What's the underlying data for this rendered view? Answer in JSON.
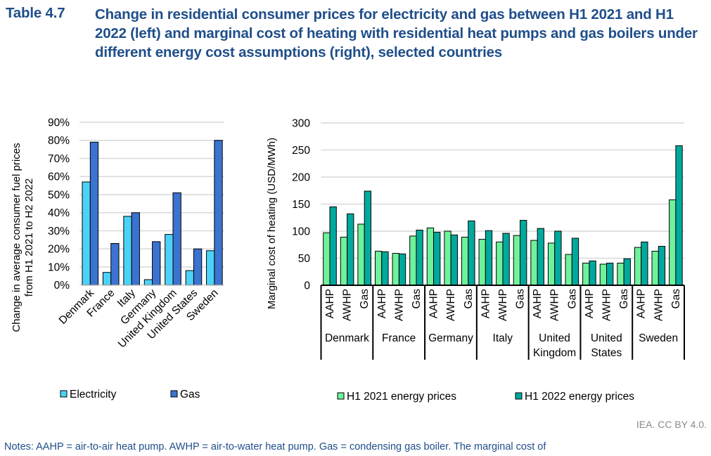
{
  "header": {
    "label": "Table 4.7",
    "title": "Change in residential consumer prices for electricity and gas between H1 2021 and H1 2022 (left) and marginal cost of heating with residential heat pumps and gas boilers under different energy cost assumptions (right), selected countries"
  },
  "credit": "IEA. CC BY 4.0.",
  "notes": "Notes: AAHP = air-to-air heat pump. AWHP = air-to-water heat pump. Gas = condensing gas boiler. The marginal cost of",
  "colors": {
    "electricity": "#4dd2f7",
    "gas": "#3b73d1",
    "h1_2021": "#6ef29b",
    "h1_2022": "#00a99d",
    "grid": "#d9d9d9",
    "text": "#000000"
  },
  "chart_data": [
    {
      "type": "bar",
      "title": "",
      "xlabel": "",
      "ylabel": "Change in average consumer fuel prices from H1 2021 to H2 2022",
      "ylim": [
        0,
        0.9
      ],
      "yticks": [
        0,
        0.1,
        0.2,
        0.3,
        0.4,
        0.5,
        0.6,
        0.7,
        0.8,
        0.9
      ],
      "ytick_labels": [
        "0%",
        "10%",
        "20%",
        "30%",
        "40%",
        "50%",
        "60%",
        "70%",
        "80%",
        "90%"
      ],
      "grid": true,
      "legend": "bottom",
      "categories": [
        "Denmark",
        "France",
        "Italy",
        "Germany",
        "United Kingdom",
        "United States",
        "Sweden"
      ],
      "series": [
        {
          "name": "Electricity",
          "values": [
            0.57,
            0.07,
            0.38,
            0.03,
            0.28,
            0.08,
            0.19
          ]
        },
        {
          "name": "Gas",
          "values": [
            0.79,
            0.23,
            0.4,
            0.24,
            0.51,
            0.2,
            0.8
          ]
        }
      ]
    },
    {
      "type": "bar",
      "title": "",
      "xlabel": "",
      "ylabel": "Marginal cost of heating (USD/MWh)",
      "ylim": [
        0,
        300
      ],
      "yticks": [
        0,
        50,
        100,
        150,
        200,
        250,
        300
      ],
      "ytick_labels": [
        "0",
        "50",
        "100",
        "150",
        "200",
        "250",
        "300"
      ],
      "grid": true,
      "legend": "bottom",
      "groups": [
        {
          "name_lines": [
            "Denmark"
          ]
        },
        {
          "name_lines": [
            "France"
          ]
        },
        {
          "name_lines": [
            "Germany"
          ]
        },
        {
          "name_lines": [
            "Italy"
          ]
        },
        {
          "name_lines": [
            "United",
            "Kingdom"
          ]
        },
        {
          "name_lines": [
            "United",
            "States"
          ]
        },
        {
          "name_lines": [
            "Sweden"
          ]
        }
      ],
      "subcategories": [
        "AAHP",
        "AWHP",
        "Gas"
      ],
      "series": [
        {
          "name": "H1 2021 energy prices",
          "values": [
            [
              97,
              89,
              113
            ],
            [
              63,
              59,
              91
            ],
            [
              106,
              100,
              89
            ],
            [
              85,
              80,
              92
            ],
            [
              83,
              78,
              57
            ],
            [
              41,
              39,
              41
            ],
            [
              70,
              63,
              158
            ]
          ]
        },
        {
          "name": "H1 2022 energy prices",
          "values": [
            [
              145,
              132,
              174
            ],
            [
              62,
              58,
              102
            ],
            [
              98,
              93,
              119
            ],
            [
              101,
              96,
              120
            ],
            [
              105,
              100,
              87
            ],
            [
              45,
              41,
              49
            ],
            [
              80,
              72,
              258
            ]
          ]
        }
      ]
    }
  ]
}
